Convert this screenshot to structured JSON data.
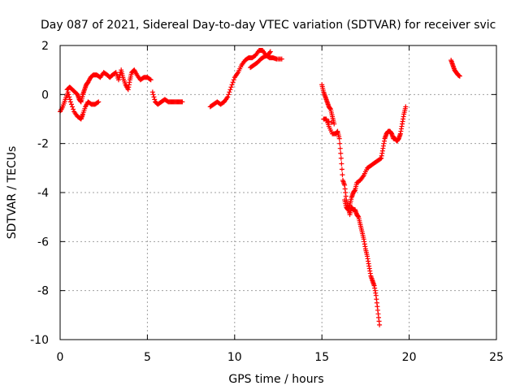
{
  "chart_data": {
    "type": "scatter",
    "title": "Day 087 of 2021, Sidereal Day-to-day VTEC variation (SDTVAR) for receiver svic",
    "xlabel": "GPS time / hours",
    "ylabel": "SDTVAR / TECUs",
    "xlim": [
      0,
      25
    ],
    "ylim": [
      -10,
      2
    ],
    "xticks": [
      "0",
      "5",
      "10",
      "15",
      "20",
      "25"
    ],
    "yticks": [
      "-10",
      "-8",
      "-6",
      "-4",
      "-2",
      "0",
      "2"
    ],
    "grid": true,
    "marker": "+",
    "color": "#ff0000",
    "series": [
      {
        "segments": [
          [
            [
              0.0,
              -0.7
            ],
            [
              0.15,
              -0.5
            ],
            [
              0.3,
              -0.2
            ],
            [
              0.45,
              0.1
            ],
            [
              0.6,
              -0.3
            ],
            [
              0.8,
              -0.7
            ],
            [
              1.0,
              -0.9
            ],
            [
              1.2,
              -1.0
            ],
            [
              1.3,
              -0.8
            ],
            [
              1.45,
              -0.5
            ],
            [
              1.6,
              -0.3
            ],
            [
              1.8,
              -0.4
            ],
            [
              2.0,
              -0.4
            ],
            [
              2.2,
              -0.3
            ]
          ],
          [
            [
              0.4,
              0.2
            ],
            [
              0.55,
              0.3
            ],
            [
              0.7,
              0.2
            ],
            [
              0.85,
              0.1
            ],
            [
              1.0,
              0.0
            ],
            [
              1.1,
              -0.2
            ],
            [
              1.2,
              -0.3
            ],
            [
              1.3,
              0.0
            ],
            [
              1.4,
              0.2
            ],
            [
              1.5,
              0.4
            ],
            [
              1.6,
              0.5
            ],
            [
              1.75,
              0.7
            ],
            [
              1.9,
              0.8
            ],
            [
              2.1,
              0.8
            ],
            [
              2.3,
              0.7
            ],
            [
              2.5,
              0.9
            ],
            [
              2.7,
              0.8
            ],
            [
              2.85,
              0.7
            ],
            [
              3.0,
              0.8
            ],
            [
              3.2,
              0.9
            ],
            [
              3.35,
              0.6
            ],
            [
              3.5,
              1.0
            ],
            [
              3.6,
              0.7
            ],
            [
              3.75,
              0.4
            ],
            [
              3.9,
              0.2
            ],
            [
              4.0,
              0.6
            ],
            [
              4.1,
              0.9
            ],
            [
              4.25,
              1.0
            ],
            [
              4.4,
              0.8
            ],
            [
              4.6,
              0.6
            ],
            [
              4.8,
              0.7
            ],
            [
              5.0,
              0.7
            ],
            [
              5.2,
              0.6
            ]
          ],
          [
            [
              5.3,
              0.1
            ],
            [
              5.45,
              -0.3
            ],
            [
              5.6,
              -0.4
            ],
            [
              5.8,
              -0.3
            ],
            [
              6.0,
              -0.2
            ],
            [
              6.2,
              -0.3
            ],
            [
              6.4,
              -0.3
            ],
            [
              6.6,
              -0.3
            ],
            [
              6.8,
              -0.3
            ],
            [
              7.0,
              -0.3
            ]
          ],
          [
            [
              8.6,
              -0.5
            ],
            [
              8.8,
              -0.4
            ],
            [
              9.0,
              -0.3
            ],
            [
              9.2,
              -0.4
            ],
            [
              9.4,
              -0.3
            ],
            [
              9.6,
              -0.1
            ],
            [
              9.8,
              0.3
            ],
            [
              10.0,
              0.7
            ],
            [
              10.2,
              0.9
            ],
            [
              10.4,
              1.2
            ],
            [
              10.6,
              1.4
            ],
            [
              10.8,
              1.5
            ],
            [
              11.0,
              1.5
            ],
            [
              11.2,
              1.6
            ],
            [
              11.4,
              1.8
            ],
            [
              11.6,
              1.8
            ],
            [
              11.8,
              1.6
            ],
            [
              12.0,
              1.5
            ],
            [
              12.2,
              1.5
            ],
            [
              12.4,
              1.45
            ],
            [
              12.7,
              1.45
            ]
          ],
          [
            [
              10.9,
              1.1
            ],
            [
              11.1,
              1.2
            ],
            [
              11.3,
              1.3
            ],
            [
              11.5,
              1.45
            ],
            [
              11.7,
              1.55
            ],
            [
              11.9,
              1.6
            ],
            [
              12.05,
              1.75
            ]
          ],
          [
            [
              15.0,
              0.4
            ],
            [
              15.1,
              0.1
            ],
            [
              15.2,
              -0.1
            ],
            [
              15.3,
              -0.3
            ],
            [
              15.4,
              -0.5
            ],
            [
              15.5,
              -0.6
            ],
            [
              15.6,
              -0.9
            ],
            [
              15.7,
              -1.2
            ],
            [
              15.1,
              -1.0
            ],
            [
              15.25,
              -1.0
            ],
            [
              15.4,
              -1.3
            ],
            [
              15.6,
              -1.6
            ],
            [
              15.8,
              -1.6
            ],
            [
              15.9,
              -1.5
            ],
            [
              16.0,
              -1.8
            ],
            [
              16.1,
              -2.6
            ],
            [
              16.2,
              -3.5
            ],
            [
              16.3,
              -3.7
            ],
            [
              16.4,
              -4.3
            ],
            [
              16.5,
              -4.6
            ],
            [
              16.6,
              -4.9
            ],
            [
              16.7,
              -4.6
            ],
            [
              16.8,
              -4.7
            ],
            [
              16.9,
              -4.7
            ],
            [
              17.0,
              -4.9
            ],
            [
              17.1,
              -5.0
            ],
            [
              17.2,
              -5.3
            ],
            [
              17.3,
              -5.6
            ],
            [
              17.4,
              -5.9
            ],
            [
              17.5,
              -6.3
            ],
            [
              17.6,
              -6.6
            ],
            [
              17.7,
              -7.0
            ],
            [
              17.8,
              -7.4
            ],
            [
              17.9,
              -7.6
            ],
            [
              18.0,
              -7.8
            ],
            [
              18.1,
              -8.2
            ],
            [
              18.2,
              -8.8
            ],
            [
              18.3,
              -9.4
            ]
          ],
          [
            [
              16.3,
              -4.3
            ],
            [
              16.4,
              -4.6
            ],
            [
              16.5,
              -4.7
            ],
            [
              16.6,
              -4.5
            ],
            [
              16.7,
              -4.2
            ],
            [
              16.8,
              -4.0
            ],
            [
              16.9,
              -3.9
            ],
            [
              17.0,
              -3.6
            ],
            [
              17.2,
              -3.5
            ],
            [
              17.4,
              -3.3
            ],
            [
              17.6,
              -3.0
            ],
            [
              17.8,
              -2.9
            ],
            [
              18.0,
              -2.8
            ],
            [
              18.2,
              -2.7
            ],
            [
              18.4,
              -2.6
            ],
            [
              18.5,
              -2.2
            ],
            [
              18.6,
              -1.8
            ],
            [
              18.7,
              -1.6
            ],
            [
              18.8,
              -1.5
            ],
            [
              18.9,
              -1.5
            ],
            [
              19.0,
              -1.6
            ],
            [
              19.1,
              -1.8
            ],
            [
              19.2,
              -1.8
            ],
            [
              19.3,
              -1.9
            ],
            [
              19.4,
              -1.8
            ],
            [
              19.5,
              -1.6
            ],
            [
              19.6,
              -1.2
            ],
            [
              19.7,
              -0.8
            ],
            [
              19.8,
              -0.5
            ]
          ],
          [
            [
              22.4,
              1.4
            ],
            [
              22.5,
              1.2
            ],
            [
              22.6,
              1.0
            ],
            [
              22.7,
              0.9
            ],
            [
              22.8,
              0.8
            ],
            [
              22.9,
              0.75
            ]
          ]
        ]
      }
    ]
  }
}
